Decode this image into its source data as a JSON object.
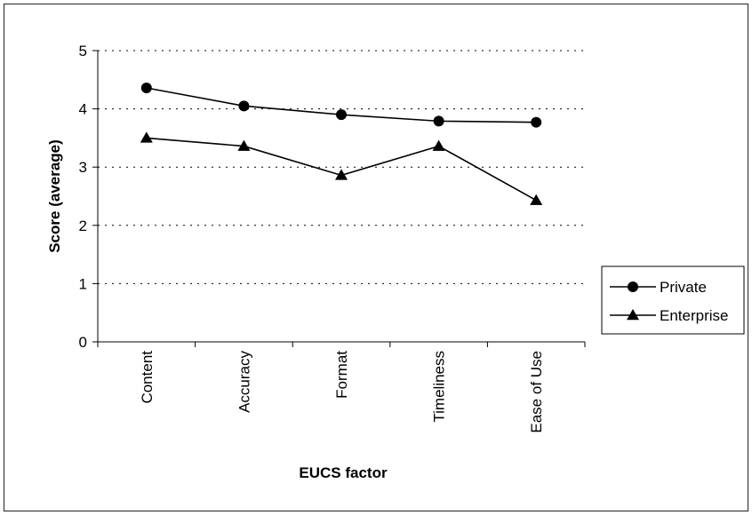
{
  "chart_data": {
    "type": "line",
    "categories": [
      "Content",
      "Accuracy",
      "Format",
      "Timeliness",
      "Ease of Use"
    ],
    "series": [
      {
        "name": "Private",
        "marker": "circle",
        "values": [
          4.36,
          4.05,
          3.9,
          3.79,
          3.77
        ]
      },
      {
        "name": "Enterprise",
        "marker": "triangle",
        "values": [
          3.5,
          3.36,
          2.86,
          3.36,
          2.43
        ]
      }
    ],
    "title": "",
    "xlabel": "EUCS factor",
    "ylabel": "Score (average)",
    "ylim": [
      0,
      5
    ],
    "yticks": [
      "0",
      "1",
      "2",
      "3",
      "4",
      "5"
    ],
    "grid": "horizontal dotted",
    "legend_position": "right",
    "line_color": "#000000"
  }
}
